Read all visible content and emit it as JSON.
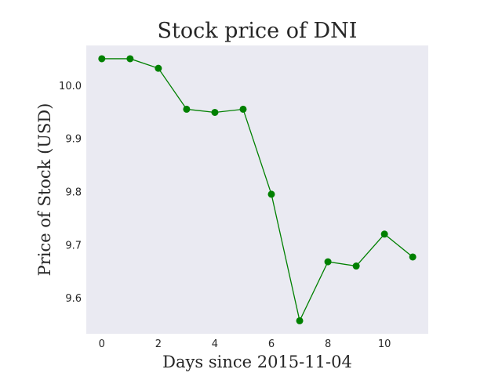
{
  "chart_data": {
    "type": "line",
    "title": "Stock price of DNI",
    "xlabel": "Days since 2015-11-04",
    "ylabel": "Price of Stock (USD)",
    "x": [
      0,
      1,
      2,
      3,
      4,
      5,
      6,
      7,
      8,
      9,
      10,
      11
    ],
    "xlim": [
      -0.55,
      11.55
    ],
    "ylim": [
      9.5325,
      10.075
    ],
    "x_ticks": [
      0,
      2,
      4,
      6,
      8,
      10
    ],
    "y_ticks": [
      9.6,
      9.7,
      9.8,
      9.9,
      10.0
    ],
    "x_tick_labels": [
      "0",
      "2",
      "4",
      "6",
      "8",
      "10"
    ],
    "y_tick_labels": [
      "9.6",
      "9.7",
      "9.8",
      "9.9",
      "10.0"
    ],
    "series": [
      {
        "values": [
          10.05,
          10.05,
          10.032,
          9.955,
          9.949,
          9.955,
          9.795,
          9.557,
          9.668,
          9.66,
          9.72,
          9.677
        ],
        "color": "#008000"
      }
    ],
    "grid": false,
    "legend": "none",
    "background_color": "#eaeaf2"
  }
}
